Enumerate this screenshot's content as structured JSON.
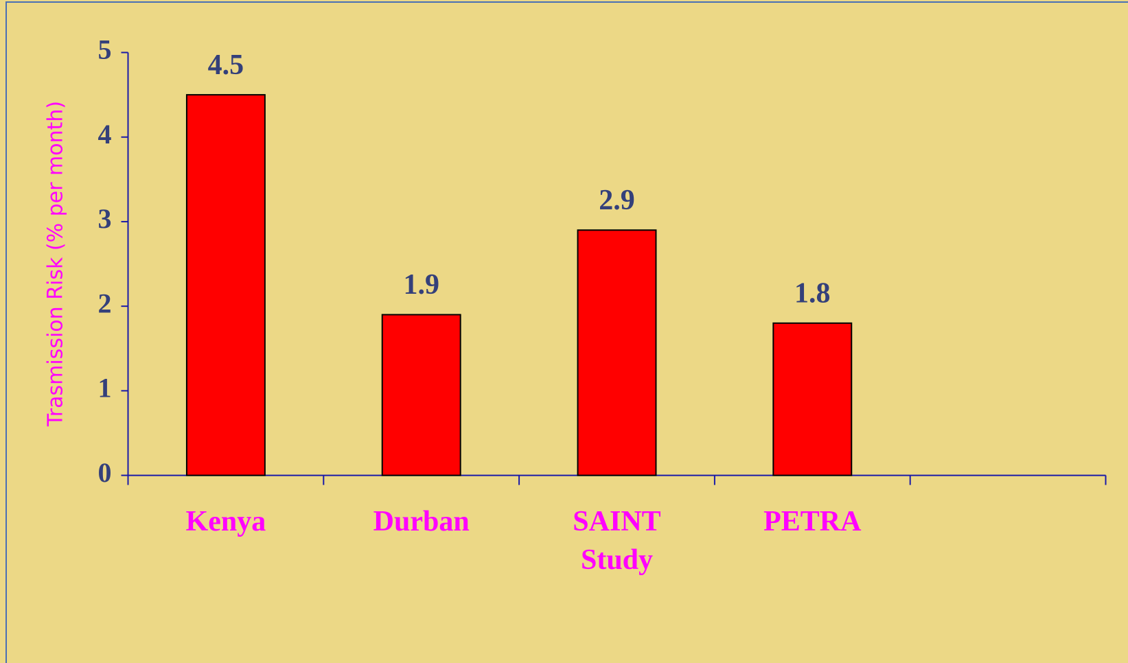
{
  "chart_data": {
    "type": "bar",
    "y_label": "Trasmission  Risk (% per month)",
    "categories": [
      "Kenya",
      "Durban",
      "SAINT Study",
      "PETRA",
      null
    ],
    "values": [
      4.5,
      1.9,
      2.9,
      1.8,
      null
    ],
    "color": "#ff0000",
    "ylim": [
      0,
      5
    ],
    "yticks": [
      0,
      1,
      2,
      3,
      4,
      5
    ],
    "grid": false
  }
}
